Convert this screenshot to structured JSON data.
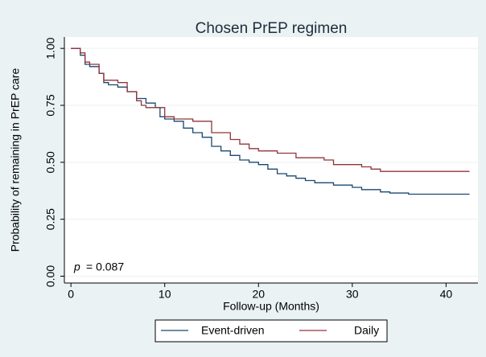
{
  "chart_data": {
    "type": "step-line",
    "title": "Chosen PrEP regimen",
    "x_label": "Follow-up (Months)",
    "y_label": "Probability of remaining in PrEP care",
    "annotation_symbol": "p",
    "annotation": "= 0.087",
    "xlim": [
      -0.7,
      43.4
    ],
    "xticks": [
      0,
      10,
      20,
      30,
      40
    ],
    "ylim": [
      -0.03,
      1.05
    ],
    "yticks": [
      {
        "value": 0,
        "label": "0.00"
      },
      {
        "value": 0.25,
        "label": "0.25"
      },
      {
        "value": 0.5,
        "label": "0.50"
      },
      {
        "value": 0.75,
        "label": "0.75"
      },
      {
        "value": 1,
        "label": "1.00"
      }
    ],
    "grid": true,
    "legend": "bottom",
    "series": [
      {
        "name": "Event-driven",
        "color": "#1a476f",
        "x": [
          0,
          0.5,
          1,
          1.5,
          2,
          3,
          3.5,
          4,
          5,
          6,
          7,
          8,
          9,
          9.5,
          10,
          11,
          12,
          13,
          14,
          15,
          16,
          17,
          18,
          19,
          20,
          21,
          22,
          23,
          24,
          25,
          26,
          28,
          30,
          31,
          33,
          34,
          36,
          42.5
        ],
        "values": [
          1.0,
          1.0,
          0.97,
          0.93,
          0.92,
          0.89,
          0.85,
          0.84,
          0.83,
          0.81,
          0.78,
          0.76,
          0.74,
          0.7,
          0.69,
          0.68,
          0.65,
          0.63,
          0.61,
          0.57,
          0.55,
          0.53,
          0.51,
          0.5,
          0.49,
          0.47,
          0.45,
          0.44,
          0.43,
          0.42,
          0.41,
          0.4,
          0.39,
          0.38,
          0.37,
          0.365,
          0.36,
          0.36
        ]
      },
      {
        "name": "Daily",
        "color": "#90353b",
        "x": [
          0,
          1,
          1.5,
          2,
          3,
          3.5,
          5,
          6,
          7,
          7.5,
          8,
          10,
          11,
          13,
          15,
          17,
          18,
          19,
          20,
          22,
          24,
          27,
          28,
          31,
          32,
          33,
          42.5
        ],
        "values": [
          1.0,
          0.98,
          0.94,
          0.93,
          0.89,
          0.86,
          0.85,
          0.81,
          0.77,
          0.75,
          0.74,
          0.7,
          0.69,
          0.68,
          0.63,
          0.6,
          0.58,
          0.56,
          0.55,
          0.54,
          0.52,
          0.51,
          0.49,
          0.48,
          0.47,
          0.46,
          0.46
        ]
      }
    ]
  }
}
